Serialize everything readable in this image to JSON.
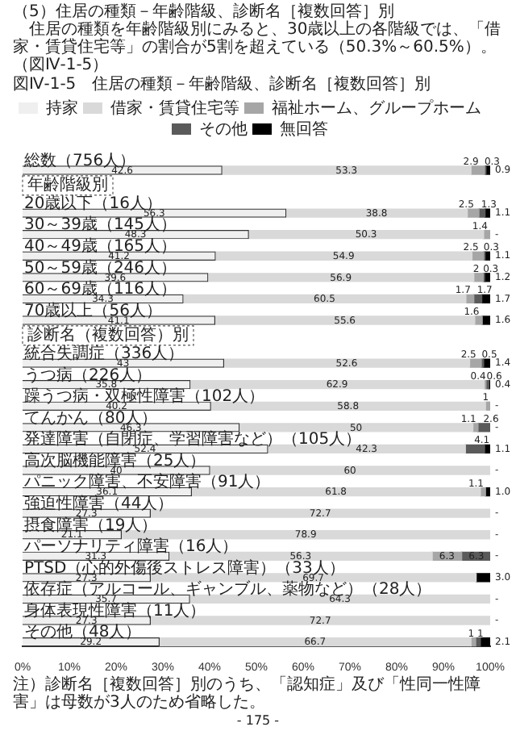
{
  "chart_data": {
    "type": "bar",
    "orientation": "horizontal",
    "stacked": true,
    "title": "図Ⅳ-1-5　住居の種類－年齢階級、診断名［複数回答］別",
    "categories": [
      "総数（756人）",
      null,
      "20歳以下（16人）",
      "30～39歳（145人）",
      "40～49歳（165人）",
      "50～59歳（246人）",
      "60～69歳（116人）",
      "70歳以上（56人）",
      null,
      "統合失調症（336人）",
      "うつ病（226人）",
      "躁うつ病・双極性障害（102人）",
      "てんかん（80人）",
      "発達障害（自閉症、学習障害など）（105人）",
      "高次脳機能障害（25人）",
      "パニック障害、不安障害（91人）",
      "強迫性障害（44人）",
      "摂食障害（19人）",
      "パーソナリティ障害（16人）",
      "PTSD（心的外傷後ストレス障害）（33人）",
      "依存症（アルコール、ギャンブル、薬物など）（28人）",
      "身体表現性障害（11人）",
      "その他（48人）"
    ],
    "series": [
      {
        "name": "持家",
        "color": "#efefef",
        "values": [
          42.6,
          null,
          56.3,
          48.3,
          41.2,
          39.6,
          34.3,
          41.1,
          null,
          43.0,
          35.8,
          40.2,
          46.3,
          52.4,
          40.0,
          36.1,
          27.3,
          21.1,
          31.3,
          27.3,
          35.7,
          27.3,
          29.2
        ]
      },
      {
        "name": "借家・賃貸住宅等",
        "color": "#d9d9d9",
        "values": [
          53.3,
          null,
          38.8,
          50.3,
          54.9,
          56.9,
          60.5,
          55.6,
          null,
          52.6,
          62.9,
          58.8,
          50.0,
          42.3,
          60.0,
          61.8,
          72.7,
          78.9,
          56.3,
          69.7,
          64.3,
          72.7,
          66.7
        ]
      },
      {
        "name": "福祉ホーム、グループホーム",
        "color": "#a6a6a6",
        "values": [
          2.9,
          null,
          2.5,
          1.4,
          2.5,
          2.0,
          1.7,
          1.6,
          null,
          2.5,
          0.4,
          1.0,
          1.1,
          null,
          null,
          1.1,
          null,
          null,
          6.3,
          null,
          null,
          null,
          1.0
        ]
      },
      {
        "name": "その他",
        "color": "#5a5a5a",
        "values": [
          0.3,
          null,
          1.3,
          null,
          0.3,
          0.3,
          1.7,
          null,
          null,
          0.5,
          0.6,
          null,
          2.6,
          4.1,
          null,
          null,
          null,
          null,
          6.3,
          null,
          null,
          null,
          1.0
        ]
      },
      {
        "name": "無回答",
        "color": "#000000",
        "values": [
          0.9,
          null,
          1.1,
          null,
          1.1,
          1.2,
          1.7,
          1.6,
          null,
          1.4,
          0.4,
          null,
          null,
          1.1,
          null,
          1.0,
          null,
          null,
          null,
          3.0,
          null,
          null,
          2.1
        ],
        "value_labels": [
          "0.9",
          null,
          "1.1",
          "-",
          "1.1",
          "1.2",
          "1.7",
          "1.6",
          null,
          "1.4",
          "0.4",
          "-",
          "-",
          "1.1",
          "-",
          "1.0",
          "-",
          "-",
          "-",
          "3.0",
          "-",
          "-",
          "2.1"
        ]
      }
    ],
    "data_labels": true,
    "xlim": [
      0,
      100
    ],
    "xticks": [
      {
        "value": 0,
        "label": "0%"
      },
      {
        "value": 10,
        "label": "10%"
      },
      {
        "value": 20,
        "label": "20%"
      },
      {
        "value": 30,
        "label": "30%"
      },
      {
        "value": 40,
        "label": "40%"
      },
      {
        "value": 50,
        "label": "50%"
      },
      {
        "value": 60,
        "label": "60%"
      },
      {
        "value": 70,
        "label": "70%"
      },
      {
        "value": 80,
        "label": "80%"
      },
      {
        "value": 90,
        "label": "90%"
      },
      {
        "value": 100,
        "label": "100%"
      }
    ],
    "legend": "top",
    "grid": false,
    "annotations": [
      "（5）住居の種類－年齢階級、診断名［複数回答］別",
      "住居の種類を年齢階級別にみると、30歳以上の各階級では、「借家・賃貸住宅等」の割合が5割を超えている（50.3%～60.5%）。（図Ⅳ-1-5）",
      "年齢階級別",
      "診断名（複数回答）別",
      "注）診断名［複数回答］別のうち、「認知症」及び「性同一性障害」は母数が3人のため省略した。",
      "- 175 -"
    ]
  }
}
